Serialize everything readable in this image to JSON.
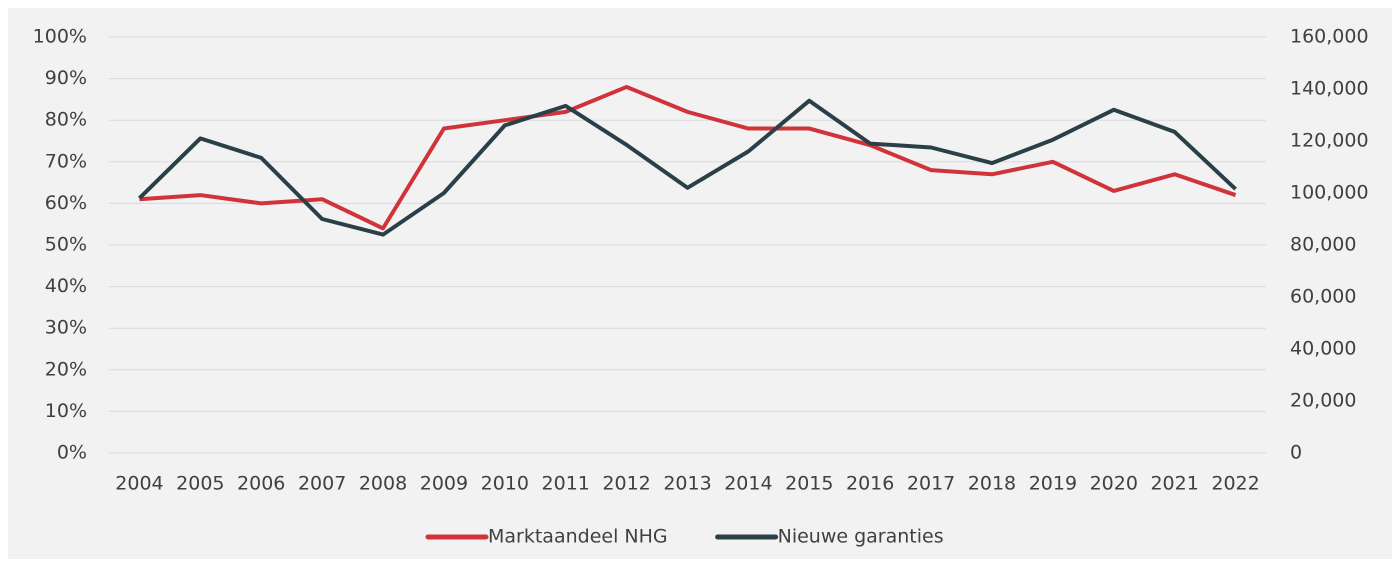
{
  "chart_data": {
    "type": "line",
    "categories": [
      "2004",
      "2005",
      "2006",
      "2007",
      "2008",
      "2009",
      "2010",
      "2011",
      "2012",
      "2013",
      "2014",
      "2015",
      "2016",
      "2017",
      "2018",
      "2019",
      "2020",
      "2021",
      "2022"
    ],
    "series": [
      {
        "name": "Marktaandeel NHG",
        "color": "#d0343a",
        "axis": "y",
        "values": [
          61,
          62,
          60,
          61,
          54,
          78,
          80,
          82,
          88,
          82,
          78,
          78,
          74,
          68,
          67,
          70,
          63,
          67,
          62
        ]
      },
      {
        "name": "Nieuwe garanties",
        "color": "#2b3f48",
        "axis": "y2",
        "values": [
          98000,
          121000,
          113500,
          90000,
          84000,
          100000,
          126000,
          133500,
          118500,
          102000,
          116000,
          135500,
          119000,
          117500,
          111500,
          120500,
          132000,
          123500,
          101500
        ]
      }
    ],
    "ylim": [
      0,
      100
    ],
    "yticks": [
      {
        "value": 0,
        "label": "0%"
      },
      {
        "value": 10,
        "label": "10%"
      },
      {
        "value": 20,
        "label": "20%"
      },
      {
        "value": 30,
        "label": "30%"
      },
      {
        "value": 40,
        "label": "40%"
      },
      {
        "value": 50,
        "label": "50%"
      },
      {
        "value": 60,
        "label": "60%"
      },
      {
        "value": 70,
        "label": "70%"
      },
      {
        "value": 80,
        "label": "80%"
      },
      {
        "value": 90,
        "label": "90%"
      },
      {
        "value": 100,
        "label": "100%"
      }
    ],
    "y2lim": [
      0,
      160000
    ],
    "y2ticks": [
      0,
      {
        "value": 20000,
        "label": "20,000"
      },
      {
        "value": 40000,
        "label": "40,000"
      },
      {
        "value": 60000,
        "label": "60,000"
      },
      {
        "value": 80000,
        "label": "80,000"
      },
      {
        "value": 100000,
        "label": "100,000"
      },
      {
        "value": 120000,
        "label": "120,000"
      },
      {
        "value": 140000,
        "label": "140,000"
      },
      {
        "value": 160000,
        "label": "160,000"
      }
    ],
    "grid": true,
    "legend": "bottom"
  }
}
